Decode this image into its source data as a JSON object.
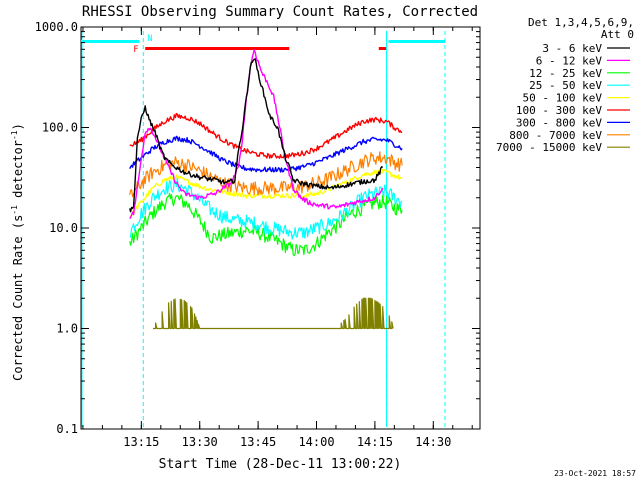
{
  "chart_data": {
    "type": "line",
    "title": "RHESSI Observing Summary Count Rates, Corrected",
    "xlabel": "Start Time (28-Dec-11 13:00:22)",
    "ylabel": "Corrected Count Rate (s⁻¹ detector⁻¹)",
    "ylabel_main": "Corrected Count Rate (s",
    "ylabel_sup1": "-1",
    "ylabel_mid": " detector",
    "ylabel_sup2": "-1",
    "ylabel_end": ")",
    "yscale": "log",
    "ylim": [
      0.1,
      1000
    ],
    "xlim": [
      "12:59:30",
      "14:42:00"
    ],
    "x_ticks": [
      "13:15",
      "13:30",
      "13:45",
      "14:00",
      "14:15",
      "14:30"
    ],
    "y_ticks": [
      "0.1",
      "1.0",
      "10.0",
      "100.0",
      "1000.0"
    ],
    "date_stamp": "23-Oct-2021 18:57",
    "legend_header": [
      "Det 1,3,4,5,6,9,",
      "Att 0"
    ],
    "legend_position": "right",
    "series": [
      {
        "name": "3 - 6 keV",
        "color": "#000000",
        "x": [
          "13:12",
          "13:13",
          "13:14",
          "13:15",
          "13:16",
          "13:17",
          "13:18",
          "13:19",
          "13:20",
          "13:21",
          "13:22",
          "13:23",
          "13:24",
          "13:26",
          "13:30",
          "13:34",
          "13:37",
          "13:39",
          "13:40",
          "13:41",
          "13:42",
          "13:43",
          "13:44",
          "13:45",
          "13:46",
          "13:47",
          "13:48",
          "13:50",
          "13:51",
          "13:52",
          "13:53",
          "13:54",
          "13:56",
          "14:00",
          "14:04",
          "14:08",
          "14:12",
          "14:15",
          "14:17"
        ],
        "values": [
          15,
          16,
          80,
          120,
          160,
          120,
          100,
          80,
          60,
          50,
          45,
          42,
          40,
          36,
          32,
          30,
          28,
          30,
          60,
          100,
          200,
          400,
          500,
          350,
          250,
          180,
          130,
          100,
          70,
          50,
          40,
          30,
          28,
          26,
          25,
          27,
          29,
          30,
          40
        ]
      },
      {
        "name": "6 - 12 keV",
        "color": "#ff00ff",
        "x": [
          "13:12",
          "13:13",
          "13:14",
          "13:15",
          "13:16",
          "13:17",
          "13:18",
          "13:20",
          "13:22",
          "13:24",
          "13:26",
          "13:30",
          "13:34",
          "13:38",
          "13:40",
          "13:41",
          "13:42",
          "13:43",
          "13:44",
          "13:45",
          "13:46",
          "13:47",
          "13:48",
          "13:49",
          "13:50",
          "13:51",
          "13:52",
          "13:53",
          "13:54",
          "13:56",
          "13:58",
          "14:00",
          "14:05",
          "14:10",
          "14:15",
          "14:17"
        ],
        "values": [
          13,
          14,
          25,
          50,
          90,
          100,
          90,
          60,
          40,
          28,
          22,
          20,
          22,
          28,
          40,
          80,
          200,
          400,
          600,
          450,
          350,
          300,
          250,
          200,
          130,
          80,
          50,
          35,
          25,
          20,
          18,
          17,
          16,
          18,
          20,
          25
        ]
      },
      {
        "name": "12 - 25 keV",
        "color": "#00ff00",
        "x": [
          "13:12",
          "13:15",
          "13:18",
          "13:21",
          "13:24",
          "13:27",
          "13:30",
          "13:33",
          "13:36",
          "13:39",
          "13:42",
          "13:45",
          "13:48",
          "13:51",
          "13:54",
          "13:57",
          "14:00",
          "14:03",
          "14:06",
          "14:09",
          "14:12",
          "14:15",
          "14:18",
          "14:20",
          "14:22"
        ],
        "values": [
          7,
          10,
          14,
          18,
          20,
          17,
          12,
          8,
          8.5,
          9,
          9.5,
          9,
          8,
          7,
          6,
          6,
          7,
          9,
          11,
          14,
          16,
          18,
          18,
          16,
          15
        ]
      },
      {
        "name": "25 - 50 keV",
        "color": "#00ffff",
        "x": [
          "13:12",
          "13:15",
          "13:18",
          "13:21",
          "13:24",
          "13:27",
          "13:30",
          "13:33",
          "13:36",
          "13:39",
          "13:42",
          "13:45",
          "13:48",
          "13:51",
          "13:54",
          "13:57",
          "14:00",
          "14:03",
          "14:06",
          "14:09",
          "14:12",
          "14:15",
          "14:18",
          "14:20",
          "14:22"
        ],
        "values": [
          9,
          14,
          20,
          25,
          27,
          24,
          19,
          15,
          13,
          12,
          11.5,
          11,
          10,
          9.5,
          9,
          9,
          10,
          11,
          13,
          16,
          20,
          22,
          23,
          20,
          18
        ]
      },
      {
        "name": "50 - 100 keV",
        "color": "#ffff00",
        "x": [
          "13:12",
          "13:15",
          "13:18",
          "13:21",
          "13:24",
          "13:27",
          "13:30",
          "13:33",
          "13:36",
          "13:39",
          "13:42",
          "13:45",
          "13:48",
          "13:51",
          "13:54",
          "13:57",
          "14:00",
          "14:03",
          "14:06",
          "14:09",
          "14:12",
          "14:15",
          "14:18",
          "14:20",
          "14:22"
        ],
        "values": [
          13,
          18,
          25,
          30,
          32,
          29,
          26,
          24,
          23,
          22,
          21,
          21,
          21,
          21,
          21,
          21,
          22,
          24,
          27,
          30,
          34,
          36,
          36,
          33,
          31
        ]
      },
      {
        "name": "100 - 300 keV",
        "color": "#ff0000",
        "x": [
          "13:12",
          "13:15",
          "13:18",
          "13:21",
          "13:24",
          "13:27",
          "13:30",
          "13:33",
          "13:36",
          "13:39",
          "13:42",
          "13:45",
          "13:48",
          "13:51",
          "13:54",
          "13:57",
          "14:00",
          "14:03",
          "14:06",
          "14:09",
          "14:12",
          "14:15",
          "14:18",
          "14:20",
          "14:22"
        ],
        "values": [
          65,
          75,
          95,
          115,
          130,
          125,
          110,
          90,
          75,
          65,
          58,
          54,
          52,
          52,
          53,
          56,
          62,
          72,
          85,
          100,
          115,
          120,
          115,
          100,
          90
        ]
      },
      {
        "name": "300 - 800 keV",
        "color": "#0000ff",
        "x": [
          "13:12",
          "13:15",
          "13:18",
          "13:21",
          "13:24",
          "13:27",
          "13:30",
          "13:33",
          "13:36",
          "13:39",
          "13:42",
          "13:45",
          "13:48",
          "13:51",
          "13:54",
          "13:57",
          "14:00",
          "14:03",
          "14:06",
          "14:09",
          "14:12",
          "14:15",
          "14:18",
          "14:20",
          "14:22"
        ],
        "values": [
          40,
          50,
          62,
          72,
          78,
          75,
          66,
          56,
          47,
          42,
          39,
          38,
          38,
          38,
          39,
          41,
          45,
          50,
          57,
          64,
          72,
          76,
          75,
          68,
          62
        ]
      },
      {
        "name": "800 - 7000 keV",
        "color": "#ff8000",
        "x": [
          "13:12",
          "13:15",
          "13:18",
          "13:21",
          "13:24",
          "13:27",
          "13:30",
          "13:33",
          "13:36",
          "13:39",
          "13:42",
          "13:45",
          "13:48",
          "13:51",
          "13:54",
          "13:57",
          "14:00",
          "14:03",
          "14:06",
          "14:09",
          "14:12",
          "14:15",
          "14:18",
          "14:20",
          "14:22"
        ],
        "values": [
          20,
          28,
          36,
          42,
          45,
          42,
          37,
          32,
          28,
          26,
          25,
          25,
          25,
          25,
          25,
          26,
          28,
          31,
          35,
          40,
          46,
          50,
          50,
          45,
          42
        ]
      },
      {
        "name": "7000 - 15000 keV",
        "color": "#808000",
        "x": [
          "13:18",
          "13:20",
          "13:22",
          "13:24",
          "13:26",
          "13:28",
          "13:30",
          "13:32",
          "13:35",
          "13:38",
          "13:41",
          "13:44",
          "13:47",
          "13:50",
          "13:53",
          "13:56",
          "13:59",
          "14:02",
          "14:05",
          "14:08",
          "14:10",
          "14:12",
          "14:14",
          "14:16",
          "14:18",
          "14:20"
        ],
        "values": [
          1,
          1.4,
          1.8,
          2,
          1.9,
          1.6,
          1,
          1,
          1,
          1,
          1,
          1,
          1,
          1,
          1,
          1,
          1,
          1,
          1,
          1.3,
          1.7,
          2,
          2,
          1.8,
          1.5,
          1
        ]
      }
    ],
    "flags": {
      "saa_label": "N",
      "flare_label": "F",
      "saa_color": "#00ffff",
      "flare_color": "#ff0000",
      "night_color": "#00ffff",
      "saa_intervals": [
        [
          "12:59:30",
          "13:14:30"
        ],
        [
          "14:18:30",
          "14:33:00"
        ]
      ],
      "flare_intervals": [
        [
          "13:16",
          "13:53"
        ],
        [
          "14:16",
          "14:18"
        ]
      ],
      "night_boundaries": [
        "13:15:30",
        "14:18:00",
        "14:33:00"
      ]
    }
  }
}
